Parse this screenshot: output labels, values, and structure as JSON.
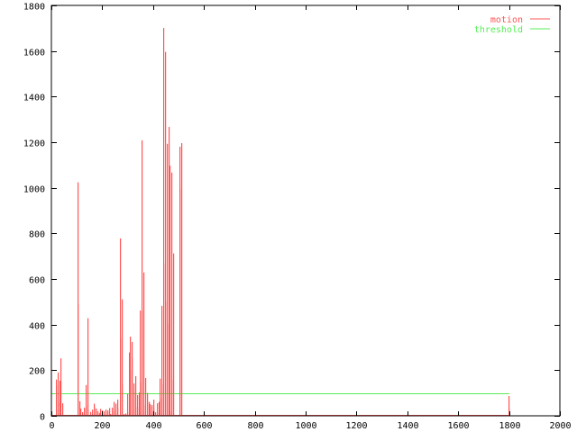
{
  "chart_data": {
    "type": "bar",
    "title": "",
    "xlabel": "",
    "ylabel": "",
    "xlim": [
      0,
      2000
    ],
    "ylim": [
      0,
      1800
    ],
    "grid": false,
    "legend_position": "top-right",
    "x_ticks": [
      "0",
      "200",
      "400",
      "600",
      "800",
      "1000",
      "1200",
      "1400",
      "1600",
      "1800",
      "2000"
    ],
    "y_ticks": [
      "0",
      "200",
      "400",
      "600",
      "800",
      "1000",
      "1200",
      "1400",
      "1600",
      "1800"
    ],
    "series": [
      {
        "name": "motion",
        "style": "impulses",
        "color": "#ff5555",
        "baseline_range": [
          0,
          1801
        ],
        "points": [
          [
            18,
            159
          ],
          [
            21,
            134
          ],
          [
            25,
            190
          ],
          [
            28,
            60
          ],
          [
            32,
            60
          ],
          [
            35,
            154
          ],
          [
            39,
            252
          ],
          [
            43,
            55
          ],
          [
            103,
            1024
          ],
          [
            106,
            489
          ],
          [
            110,
            64
          ],
          [
            113,
            32
          ],
          [
            117,
            32
          ],
          [
            121,
            16
          ],
          [
            124,
            8
          ],
          [
            128,
            28
          ],
          [
            131,
            36
          ],
          [
            135,
            43
          ],
          [
            138,
            135
          ],
          [
            142,
            428
          ],
          [
            145,
            29
          ],
          [
            149,
            4
          ],
          [
            152,
            4
          ],
          [
            156,
            17
          ],
          [
            160,
            27
          ],
          [
            163,
            8
          ],
          [
            167,
            53
          ],
          [
            170,
            41
          ],
          [
            174,
            32
          ],
          [
            177,
            21
          ],
          [
            181,
            21
          ],
          [
            184,
            12
          ],
          [
            188,
            8
          ],
          [
            191,
            12
          ],
          [
            195,
            30
          ],
          [
            199,
            24
          ],
          [
            202,
            10
          ],
          [
            206,
            8
          ],
          [
            209,
            20
          ],
          [
            213,
            28
          ],
          [
            216,
            8
          ],
          [
            220,
            17
          ],
          [
            223,
            24
          ],
          [
            227,
            8
          ],
          [
            230,
            34
          ],
          [
            234,
            8
          ],
          [
            238,
            22
          ],
          [
            241,
            36
          ],
          [
            245,
            28
          ],
          [
            248,
            61
          ],
          [
            252,
            53
          ],
          [
            255,
            12
          ],
          [
            259,
            34
          ],
          [
            262,
            71
          ],
          [
            270,
            340
          ],
          [
            273,
            778
          ],
          [
            277,
            511
          ],
          [
            280,
            139
          ],
          [
            284,
            3
          ],
          [
            287,
            8
          ],
          [
            291,
            10
          ],
          [
            294,
            5
          ],
          [
            298,
            16
          ],
          [
            301,
            95
          ],
          [
            305,
            278
          ],
          [
            309,
            347
          ],
          [
            312,
            199
          ],
          [
            316,
            324
          ],
          [
            319,
            256
          ],
          [
            323,
            107
          ],
          [
            326,
            142
          ],
          [
            330,
            174
          ],
          [
            333,
            39
          ],
          [
            337,
            39
          ],
          [
            340,
            91
          ],
          [
            344,
            103
          ],
          [
            348,
            146
          ],
          [
            351,
            462
          ],
          [
            355,
            1208
          ],
          [
            358,
            462
          ],
          [
            362,
            629
          ],
          [
            365,
            47
          ],
          [
            369,
            2
          ],
          [
            372,
            166
          ],
          [
            376,
            100
          ],
          [
            379,
            61
          ],
          [
            383,
            61
          ],
          [
            387,
            41
          ],
          [
            390,
            51
          ],
          [
            394,
            24
          ],
          [
            397,
            47
          ],
          [
            401,
            35
          ],
          [
            404,
            71
          ],
          [
            408,
            16
          ],
          [
            411,
            5
          ],
          [
            415,
            16
          ],
          [
            418,
            55
          ],
          [
            422,
            61
          ],
          [
            426,
            163
          ],
          [
            429,
            76
          ],
          [
            433,
            140
          ],
          [
            436,
            482
          ],
          [
            440,
            668
          ],
          [
            443,
            1701
          ],
          [
            447,
            501
          ],
          [
            450,
            1596
          ],
          [
            454,
            403
          ],
          [
            457,
            1193
          ],
          [
            461,
            1267
          ],
          [
            465,
            1097
          ],
          [
            468,
            20
          ],
          [
            472,
            159
          ],
          [
            475,
            1067
          ],
          [
            479,
            712
          ],
          [
            504,
            1180
          ],
          [
            507,
            995
          ],
          [
            511,
            1196
          ],
          [
            1798,
            87
          ],
          [
            1801,
            32
          ]
        ]
      },
      {
        "name": "threshold",
        "style": "lines",
        "color": "#55ee55",
        "points": [
          [
            0,
            100
          ],
          [
            1801,
            100
          ]
        ]
      }
    ]
  }
}
